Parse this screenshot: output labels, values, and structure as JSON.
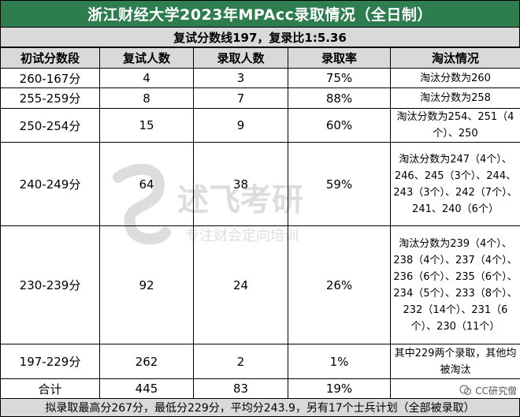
{
  "title": "浙江财经大学2023年MPAcc录取情况（全日制）",
  "subtitle": "复试分数线197，复录比1:5.36",
  "headers": [
    "初试分数段",
    "复试人数",
    "录取人数",
    "录取率",
    "淘汰情况"
  ],
  "rows": [
    {
      "range": "260-167分",
      "interviewed": "4",
      "admitted": "3",
      "rate": "75%",
      "eliminated": "淘汰分数为260"
    },
    {
      "range": "255-259分",
      "interviewed": "8",
      "admitted": "7",
      "rate": "88%",
      "eliminated": "淘汰分数为258"
    },
    {
      "range": "250-254分",
      "interviewed": "15",
      "admitted": "9",
      "rate": "60%",
      "eliminated": "淘汰分数为254、251（4个）、250"
    },
    {
      "range": "240-249分",
      "interviewed": "64",
      "admitted": "38",
      "rate": "59%",
      "eliminated": "淘汰分数为247（4个）、246、245（3个）、244、243（3个）、242（7个）、241、240（6个）"
    },
    {
      "range": "230-239分",
      "interviewed": "92",
      "admitted": "24",
      "rate": "26%",
      "eliminated": "淘汰分数为239（4个）、238（4个）、237（4个）、236（6个）、235（6个）、234（5个）、233（8个）、232（14个）、231（6个）、230（11个）"
    },
    {
      "range": "197-229分",
      "interviewed": "262",
      "admitted": "2",
      "rate": "1%",
      "eliminated": "其中229两个录取，其他均被淘汰"
    },
    {
      "range": "合计",
      "interviewed": "445",
      "admitted": "83",
      "rate": "19%",
      "eliminated": ""
    }
  ],
  "footer": "拟录取最高分267分，最低分229分，平均分243.9，另有17个士兵计划（全部被录取）",
  "watermark": {
    "logo_text": "述飞考研",
    "sub_text": "专注财会定向培训"
  },
  "badge": {
    "text": "CC研究僧"
  },
  "colors": {
    "title_bg": "#2e7d4f",
    "header_bg": "#d9d9d9"
  }
}
